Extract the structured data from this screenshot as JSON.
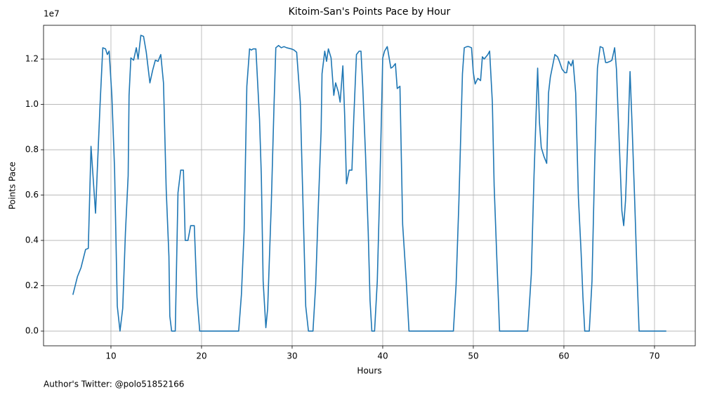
{
  "chart_data": {
    "type": "line",
    "title": "Kitoim-San's Points Pace by Hour",
    "x_label": "Hours",
    "y_label": "Points Pace",
    "y_offset_label": "1e7",
    "annotation": "Author's Twitter: @polo51852166",
    "grid": true,
    "xlim": [
      2.56,
      74.5
    ],
    "ylim": [
      -0.065,
      1.349
    ],
    "xticks": [
      10,
      20,
      30,
      40,
      50,
      60,
      70
    ],
    "yticks": [
      {
        "value": 0,
        "label": "0.0"
      },
      {
        "value": 0.2,
        "label": "0.2"
      },
      {
        "value": 0.4,
        "label": "0.4"
      },
      {
        "value": 0.6,
        "label": "0.6"
      },
      {
        "value": 0.8,
        "label": "0.8"
      },
      {
        "value": 1.0,
        "label": "1.0"
      },
      {
        "value": 1.2,
        "label": "1.2"
      }
    ],
    "series": [
      {
        "name": "Points Pace",
        "color": "#1f77b4",
        "x": [
          5.8,
          6.3,
          6.7,
          7.2,
          7.5,
          7.8,
          8.3,
          8.5,
          8.8,
          9.1,
          9.4,
          9.6,
          9.8,
          10.1,
          10.4,
          10.7,
          11.0,
          11.3,
          11.6,
          11.9,
          12.0,
          12.2,
          12.5,
          12.8,
          13.0,
          13.3,
          13.6,
          13.9,
          14.3,
          14.6,
          14.9,
          15.2,
          15.5,
          15.8,
          16.1,
          16.4,
          16.5,
          16.7,
          17.1,
          17.4,
          17.7,
          18.0,
          18.2,
          18.5,
          18.8,
          19.2,
          19.5,
          19.8,
          24.1,
          24.4,
          24.7,
          25.0,
          25.3,
          25.5,
          25.7,
          26.0,
          26.4,
          26.6,
          26.8,
          27.1,
          27.3,
          27.7,
          28.0,
          28.2,
          28.5,
          28.8,
          29.1,
          29.4,
          29.9,
          30.2,
          30.5,
          30.9,
          31.2,
          31.5,
          31.8,
          32.3,
          32.6,
          32.9,
          33.2,
          33.3,
          33.6,
          33.8,
          34.0,
          34.3,
          34.6,
          34.8,
          35.1,
          35.3,
          35.6,
          35.8,
          36.0,
          36.3,
          36.6,
          36.8,
          37.1,
          37.4,
          37.6,
          37.8,
          38.1,
          38.4,
          38.6,
          38.8,
          39.1,
          39.4,
          39.7,
          40.0,
          40.2,
          40.5,
          40.9,
          41.1,
          41.4,
          41.6,
          41.9,
          42.2,
          42.6,
          42.9,
          47.8,
          48.1,
          48.4,
          48.8,
          49.0,
          49.3,
          49.5,
          49.8,
          50.0,
          50.2,
          50.5,
          50.8,
          51.0,
          51.2,
          51.6,
          51.8,
          52.1,
          52.3,
          52.6,
          52.9,
          56.0,
          56.4,
          56.7,
          57.1,
          57.3,
          57.5,
          57.8,
          58.1,
          58.3,
          58.5,
          58.8,
          59.0,
          59.3,
          59.5,
          59.8,
          60.1,
          60.3,
          60.5,
          60.8,
          61.0,
          61.3,
          61.6,
          61.9,
          62.1,
          62.3,
          62.8,
          63.1,
          63.4,
          63.7,
          64.0,
          64.3,
          64.6,
          64.8,
          65.1,
          65.3,
          65.6,
          65.8,
          66.1,
          66.4,
          66.6,
          66.8,
          67.1,
          67.3,
          67.5,
          67.8,
          68.1,
          68.3,
          71.3
        ],
        "values": [
          0.16,
          0.24,
          0.28,
          0.36,
          0.365,
          0.815,
          0.52,
          0.715,
          1.0,
          1.25,
          1.245,
          1.22,
          1.235,
          1.04,
          0.715,
          0.11,
          0.0,
          0.1,
          0.435,
          0.685,
          1.04,
          1.205,
          1.195,
          1.25,
          1.2,
          1.305,
          1.3,
          1.23,
          1.095,
          1.15,
          1.195,
          1.19,
          1.22,
          1.095,
          0.625,
          0.33,
          0.065,
          0.0,
          0.0,
          0.61,
          0.71,
          0.71,
          0.4,
          0.4,
          0.465,
          0.465,
          0.15,
          0.0,
          0.0,
          0.16,
          0.44,
          1.08,
          1.245,
          1.24,
          1.245,
          1.245,
          0.935,
          0.685,
          0.22,
          0.015,
          0.1,
          0.56,
          0.995,
          1.25,
          1.26,
          1.25,
          1.255,
          1.25,
          1.245,
          1.24,
          1.23,
          1.01,
          0.56,
          0.11,
          0.0,
          0.0,
          0.205,
          0.56,
          0.885,
          1.135,
          1.235,
          1.19,
          1.245,
          1.205,
          1.04,
          1.095,
          1.055,
          1.01,
          1.17,
          0.95,
          0.65,
          0.71,
          0.71,
          0.935,
          1.22,
          1.235,
          1.235,
          1.075,
          0.78,
          0.435,
          0.135,
          0.0,
          0.0,
          0.22,
          0.67,
          1.205,
          1.235,
          1.255,
          1.16,
          1.165,
          1.18,
          1.07,
          1.08,
          0.47,
          0.22,
          0.0,
          0.0,
          0.205,
          0.56,
          1.135,
          1.25,
          1.255,
          1.255,
          1.25,
          1.14,
          1.09,
          1.115,
          1.105,
          1.21,
          1.2,
          1.22,
          1.235,
          1.01,
          0.64,
          0.315,
          0.0,
          0.0,
          0.25,
          0.685,
          1.16,
          0.92,
          0.81,
          0.77,
          0.74,
          1.05,
          1.12,
          1.18,
          1.22,
          1.21,
          1.19,
          1.155,
          1.14,
          1.14,
          1.19,
          1.17,
          1.195,
          1.05,
          0.59,
          0.345,
          0.15,
          0.0,
          0.0,
          0.22,
          0.745,
          1.16,
          1.255,
          1.25,
          1.185,
          1.185,
          1.19,
          1.195,
          1.25,
          1.155,
          0.84,
          0.53,
          0.465,
          0.575,
          0.9,
          1.145,
          0.935,
          0.59,
          0.22,
          0.0,
          0.0
        ]
      }
    ]
  }
}
